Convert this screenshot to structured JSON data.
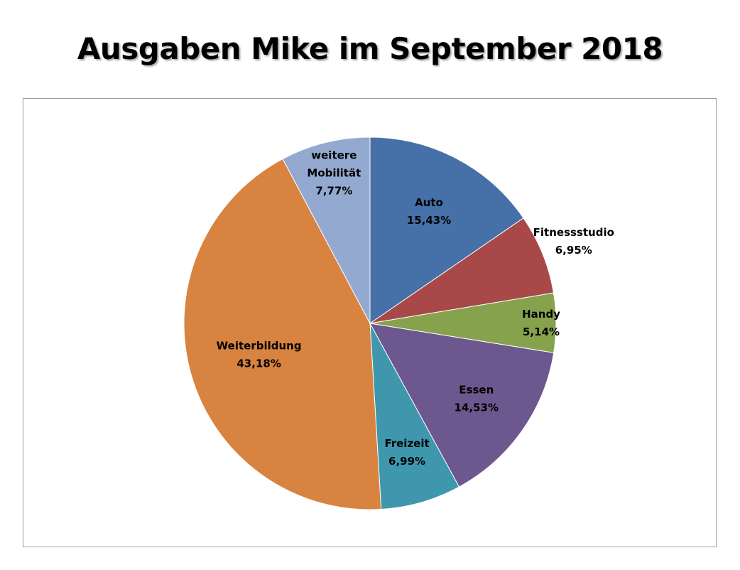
{
  "chart_data": {
    "type": "pie",
    "title": "Ausgaben Mike im September 2018",
    "categories": [
      "Auto",
      "Fitnessstudio",
      "Handy",
      "Essen",
      "Freizeit",
      "Weiterbildung",
      "weitere Mobilität"
    ],
    "values": [
      15.43,
      6.95,
      5.14,
      14.53,
      6.99,
      43.18,
      7.77
    ],
    "value_labels": [
      "15,43%",
      "6,95%",
      "5,14%",
      "14,53%",
      "6,99%",
      "43,18%",
      "7,77%"
    ],
    "colors": [
      "#4670a8",
      "#a84848",
      "#86a24d",
      "#6d578f",
      "#3e97ad",
      "#d8833f",
      "#93a9d0"
    ],
    "legend": "none",
    "label_position": "inside"
  }
}
